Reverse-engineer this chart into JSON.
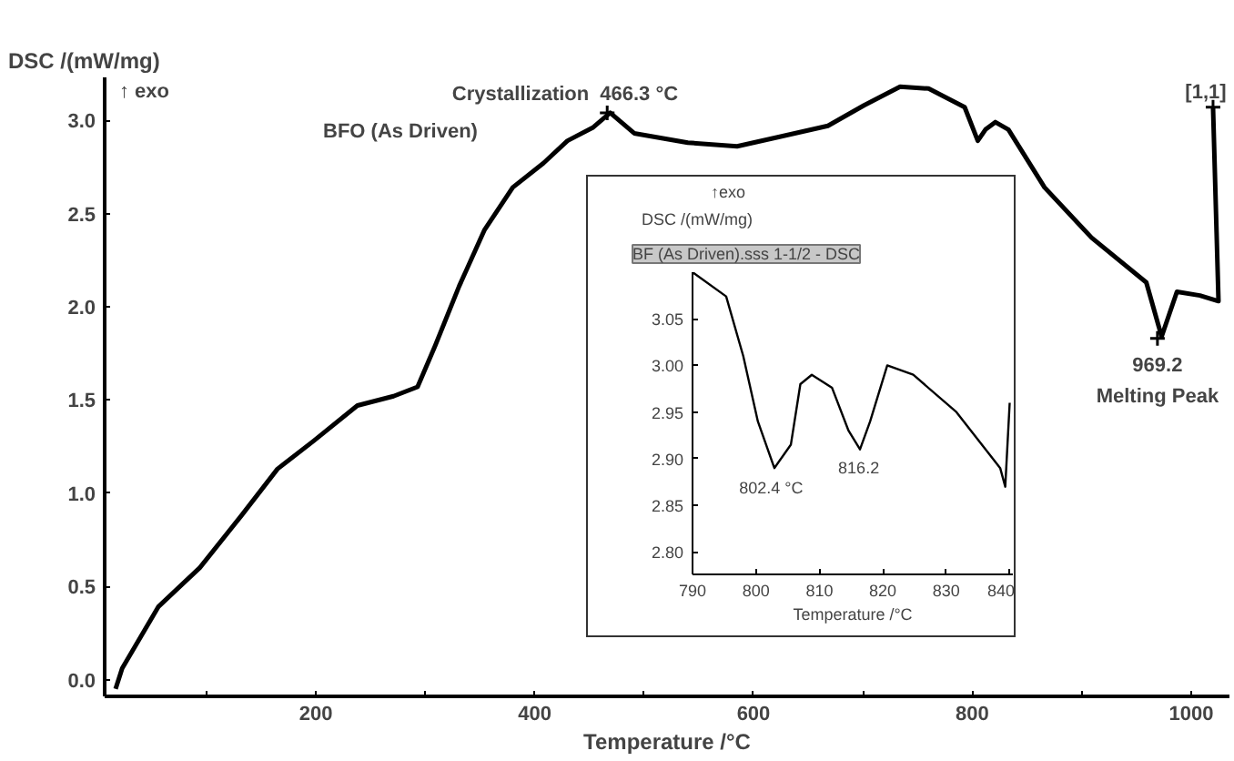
{
  "chart_data": [
    {
      "type": "line",
      "xlabel": "Temperature /°C",
      "ylabel": "DSC /(mW/mg)",
      "xlim": [
        7,
        1035
      ],
      "ylim": [
        -0.09,
        3.23
      ],
      "xticks": [
        {
          "value": 100,
          "label": null
        },
        200,
        {
          "value": 300,
          "label": null
        },
        400,
        {
          "value": 500,
          "label": null
        },
        600,
        {
          "value": 700,
          "label": null
        },
        800,
        {
          "value": 900,
          "label": null
        },
        1000
      ],
      "yticks": [
        {
          "value": 0,
          "label": "0.0"
        },
        0.5,
        {
          "value": 1,
          "label": "1.0"
        },
        1.5,
        {
          "value": 2,
          "label": "2.0"
        },
        2.5,
        {
          "value": 3,
          "label": "3.0"
        }
      ],
      "grid": false,
      "marker": "none",
      "line_style": "solid",
      "series": [
        {
          "color": "#000000",
          "x": [
            17,
            23,
            56,
            94,
            132,
            165,
            198,
            238,
            271,
            293,
            309,
            331,
            354,
            380,
            408,
            430,
            453,
            469,
            491,
            540,
            585,
            623,
            668,
            701,
            734,
            760,
            793,
            805,
            812,
            821,
            833,
            866,
            909,
            959,
            973,
            987,
            1008,
            1025,
            1020
          ],
          "values": [
            -0.05,
            0.06,
            0.39,
            0.6,
            0.88,
            1.13,
            1.28,
            1.47,
            1.52,
            1.57,
            1.79,
            2.11,
            2.41,
            2.64,
            2.77,
            2.89,
            2.96,
            3.04,
            2.93,
            2.88,
            2.86,
            2.91,
            2.97,
            3.08,
            3.18,
            3.17,
            3.07,
            2.89,
            2.95,
            2.99,
            2.95,
            2.64,
            2.37,
            2.13,
            1.84,
            2.08,
            2.06,
            2.03,
            3.07
          ]
        }
      ],
      "annotations": [
        "↑ exo",
        "BFO (As Driven)",
        {
          "text": "Crystallization",
          "x": 466.3,
          "y": 3.04
        },
        {
          "text": "466.3 °C",
          "x": 466.3,
          "y": 3.04
        },
        {
          "text": "969.2",
          "x": 969.2,
          "y": 1.83
        },
        {
          "text": "Melting Peak",
          "x": 969.2,
          "y": 1.83
        },
        {
          "text": "[1,1]",
          "x": 1020,
          "y": 3.07
        }
      ]
    },
    {
      "type": "line",
      "title": "BF (As Driven).sss 1-1/2 - DSC",
      "xlabel": "Temperature /°C",
      "ylabel": "DSC /(mW/mg)",
      "xlim": [
        790,
        840.5
      ],
      "ylim": [
        2.776,
        3.1
      ],
      "xticks": [
        790,
        800,
        810,
        820,
        830,
        840
      ],
      "yticks": [
        {
          "value": 2.8,
          "label": "2.80"
        },
        2.85,
        {
          "value": 2.9,
          "label": "2.90"
        },
        2.95,
        {
          "value": 3.0,
          "label": "3.00"
        },
        3.05
      ],
      "grid": false,
      "marker": "none",
      "line_style": "solid",
      "series": [
        {
          "color": "#000000",
          "x": [
            790,
            795.3,
            798,
            800.3,
            802.9,
            805.5,
            807,
            808.8,
            812,
            814.6,
            816.4,
            818,
            820.7,
            824.8,
            831.6,
            838.5,
            839.3,
            840
          ],
          "values": [
            3.1,
            3.074,
            3.01,
            2.94,
            2.89,
            2.915,
            2.98,
            2.99,
            2.976,
            2.93,
            2.91,
            2.94,
            3.0,
            2.99,
            2.95,
            2.89,
            2.87,
            2.96
          ]
        }
      ],
      "annotations": [
        "↑exo",
        {
          "text": "802.4 °C",
          "x": 802.4,
          "y": 2.89
        },
        {
          "text": "816.2",
          "x": 816.2,
          "y": 2.91
        }
      ]
    }
  ]
}
